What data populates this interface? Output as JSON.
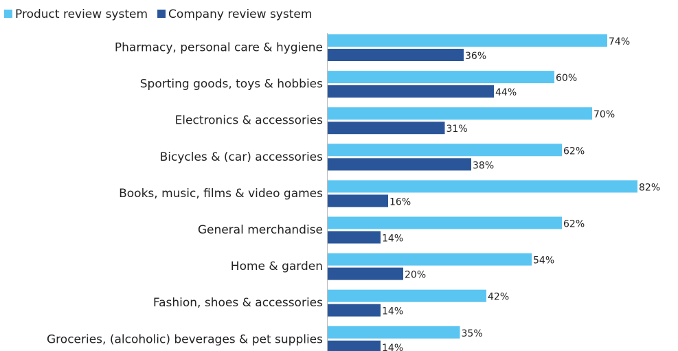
{
  "chart_data": {
    "type": "bar",
    "orientation": "horizontal",
    "categories": [
      "Pharmacy, personal care & hygiene",
      "Sporting goods, toys & hobbies",
      "Electronics & accessories",
      "Bicycles & (car) accessories",
      "Books, music, films & video games",
      "General merchandise",
      "Home & garden",
      "Fashion, shoes & accessories",
      "Groceries, (alcoholic) beverages & pet supplies"
    ],
    "series": [
      {
        "name": "Product review system",
        "color": "#5bc5f2",
        "values": [
          74,
          60,
          70,
          62,
          82,
          62,
          54,
          42,
          35
        ],
        "value_labels": [
          "74%",
          "60%",
          "70%",
          "62%",
          "82%",
          "62%",
          "54%",
          "42%",
          "35%"
        ]
      },
      {
        "name": "Company review system",
        "color": "#2a5699",
        "values": [
          36,
          44,
          31,
          38,
          16,
          14,
          20,
          14,
          14
        ],
        "value_labels": [
          "36%",
          "44%",
          "31%",
          "38%",
          "16%",
          "14%",
          "20%",
          "14%",
          "14%"
        ]
      }
    ],
    "xlim": [
      0,
      100
    ],
    "legend": "top-left"
  }
}
